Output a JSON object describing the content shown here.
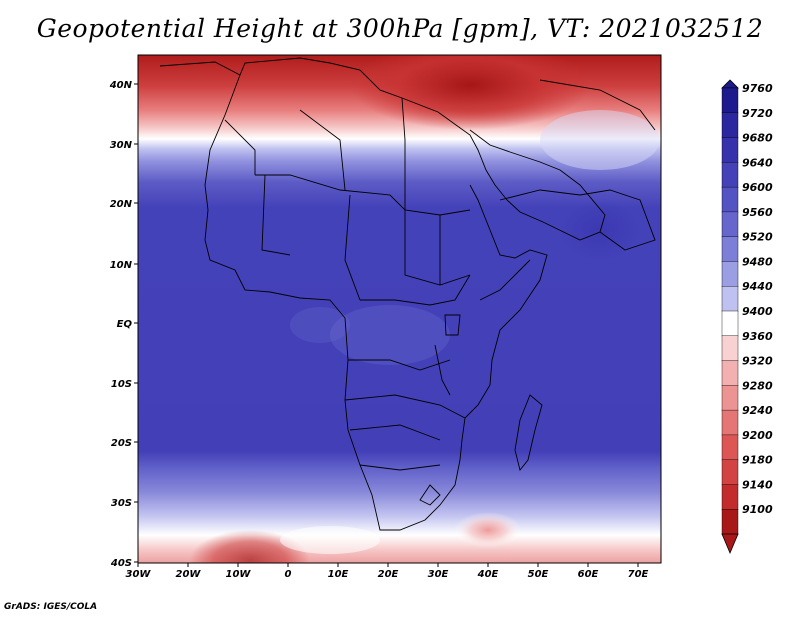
{
  "title": "Geopotential Height at 300hPa [gpm], VT: 2021032512",
  "footer": "GrADS: IGES/COLA",
  "map": {
    "lat_labels": [
      "40N",
      "30N",
      "20N",
      "10N",
      "EQ",
      "10S",
      "20S",
      "30S",
      "40S"
    ],
    "lon_labels": [
      "30W",
      "20W",
      "10W",
      "0",
      "10E",
      "20E",
      "30E",
      "40E",
      "50E",
      "60E",
      "70E"
    ]
  },
  "colorbar": {
    "labels": [
      "9760",
      "9720",
      "9680",
      "9640",
      "9600",
      "9560",
      "9520",
      "9480",
      "9440",
      "9400",
      "9360",
      "9320",
      "9280",
      "9240",
      "9200",
      "9180",
      "9140",
      "9100"
    ],
    "colors": [
      "#1c1a8c",
      "#2a279f",
      "#3632ac",
      "#4542b8",
      "#5453c4",
      "#6666cc",
      "#7c7ed8",
      "#9c9ee4",
      "#bfc1f0",
      "#ffffff",
      "#f8d2d2",
      "#f2b0b0",
      "#ec9494",
      "#e57676",
      "#dc5656",
      "#d24444",
      "#c22c2c",
      "#a81818"
    ]
  }
}
